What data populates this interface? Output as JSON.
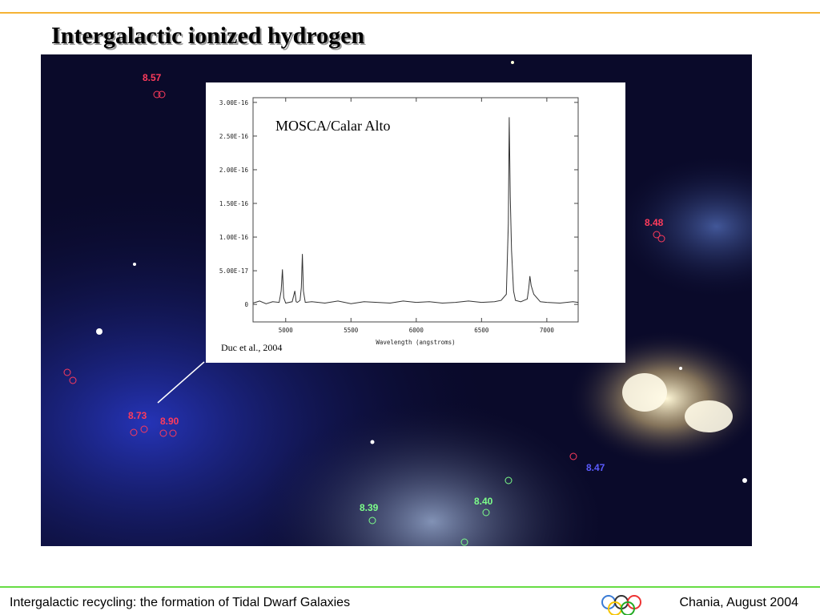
{
  "header": {
    "title": "Intergalactic ionized hydrogen"
  },
  "image_labels": [
    {
      "text": "8.57",
      "color": "red"
    },
    {
      "text": "8.48",
      "color": "red"
    },
    {
      "text": "8.73",
      "color": "red"
    },
    {
      "text": "8.90",
      "color": "red"
    },
    {
      "text": "8.39",
      "color": "green"
    },
    {
      "text": "8.40",
      "color": "green"
    },
    {
      "text": "8.47",
      "color": "blue"
    }
  ],
  "spectrum": {
    "type": "line",
    "title": "MOSCA/Calar Alto",
    "credit": "Duc et al., 2004",
    "x_label": "Wavelength (angstroms)",
    "xlim": [
      4750,
      7240
    ],
    "ylim": [
      -2.6e-17,
      3.07e-16
    ],
    "xticks": [
      5000,
      5500,
      6000,
      6500,
      7000
    ],
    "yticks": [
      0,
      {
        "value": 5e-17,
        "label": "5.00E-17"
      },
      {
        "value": 1e-16,
        "label": "1.00E-16"
      },
      {
        "value": 1.5e-16,
        "label": "1.50E-16"
      },
      {
        "value": 2e-16,
        "label": "2.00E-16"
      },
      {
        "value": 2.5e-16,
        "label": "2.50E-16"
      },
      {
        "value": 3e-16,
        "label": "3.00E-16"
      }
    ],
    "x": [
      4750,
      4800,
      4850,
      4900,
      4950,
      4965,
      4975,
      4985,
      5000,
      5050,
      5070,
      5080,
      5090,
      5110,
      5120,
      5128,
      5136,
      5150,
      5200,
      5300,
      5400,
      5500,
      5600,
      5700,
      5800,
      5900,
      6000,
      6100,
      6200,
      6300,
      6400,
      6500,
      6600,
      6650,
      6690,
      6705,
      6712,
      6720,
      6730,
      6745,
      6760,
      6800,
      6850,
      6862,
      6870,
      6880,
      6900,
      6950,
      7000,
      7100,
      7200,
      7240
    ],
    "y": [
      2e-18,
      5e-18,
      1e-18,
      4e-18,
      3e-18,
      2e-17,
      5.2e-17,
      1e-17,
      2e-18,
      4e-18,
      2e-17,
      4e-18,
      3e-18,
      6e-18,
      2.5e-17,
      7.5e-17,
      2e-17,
      3e-18,
      4e-18,
      2e-18,
      5e-18,
      1e-18,
      4e-18,
      3e-18,
      2e-18,
      5e-18,
      3e-18,
      4e-18,
      2e-18,
      3e-18,
      5e-18,
      3e-18,
      4e-18,
      6e-18,
      1.5e-17,
      1.2e-16,
      2.78e-16,
      1.6e-16,
      8e-17,
      2e-17,
      6e-18,
      4e-18,
      8e-18,
      2.5e-17,
      4.2e-17,
      2.8e-17,
      1.5e-17,
      4e-18,
      3e-18,
      2e-18,
      4e-18,
      3e-18
    ],
    "color": "#333333"
  },
  "footer": {
    "left": "Intergalactic recycling: the formation of Tidal Dwarf Galaxies",
    "right": "Chania, August 2004"
  }
}
